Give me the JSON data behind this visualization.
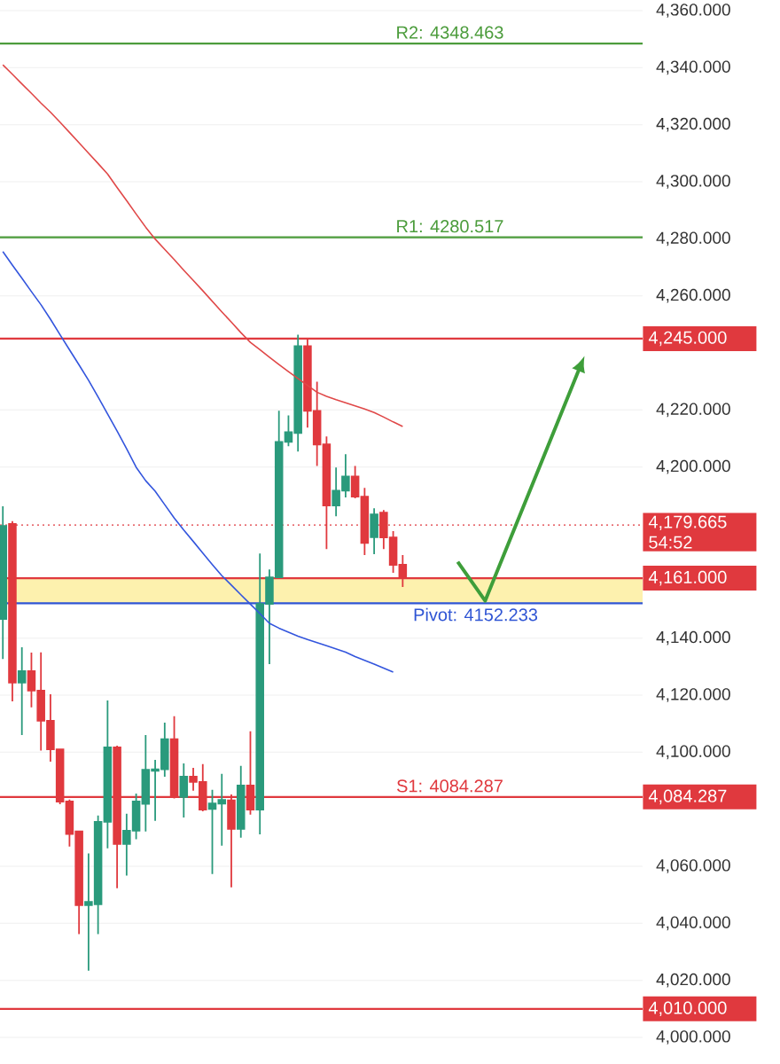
{
  "chart_data": {
    "type": "candlestick",
    "categories": [
      null,
      null,
      null,
      null,
      null,
      null,
      null,
      null,
      null,
      null,
      null,
      null,
      null,
      null,
      null,
      null,
      null,
      null,
      null,
      null,
      null,
      null,
      null,
      null,
      null,
      null,
      null,
      null,
      null,
      null,
      null,
      null,
      null,
      null,
      null,
      null,
      null,
      null,
      null,
      null,
      null,
      null,
      null
    ],
    "ohlc": [
      [
        4146.7,
        4186.2,
        4132.7,
        4179.3
      ],
      [
        4180,
        4181,
        4117.8,
        4124.4
      ],
      [
        4124.4,
        4136.8,
        4106,
        4128.4
      ],
      [
        4128.4,
        4134.9,
        4115.7,
        4121.6
      ],
      [
        4121.6,
        4135,
        4100.6,
        4111
      ],
      [
        4111,
        4120.3,
        4096.7,
        4101
      ],
      [
        4101,
        4101.2,
        4081.8,
        4082.7
      ],
      [
        4082.7,
        4083.4,
        4066.9,
        4071.3
      ],
      [
        4072.2,
        4072.5,
        4036.2,
        4046.4
      ],
      [
        4046.4,
        4064.5,
        4023.4,
        4047.5
      ],
      [
        4046.7,
        4077.8,
        4036.2,
        4075.6
      ],
      [
        4075.6,
        4118.1,
        4066.3,
        4101.7
      ],
      [
        4101.7,
        4102.3,
        4052.3,
        4067.8
      ],
      [
        4067.8,
        4078.4,
        4056.7,
        4072.5
      ],
      [
        4072.5,
        4085.5,
        4069.5,
        4082.7
      ],
      [
        4081.9,
        4106,
        4072.2,
        4093.8
      ],
      [
        4093.5,
        4097.3,
        4075.9,
        4094
      ],
      [
        4094,
        4110.4,
        4091.4,
        4104.6
      ],
      [
        4104.6,
        4112.6,
        4083.8,
        4084.3
      ],
      [
        4084.3,
        4096.1,
        4077.1,
        4091.4
      ],
      [
        4091.4,
        4094.5,
        4086.5,
        4089.6
      ],
      [
        4089.6,
        4095.8,
        4079.3,
        4079.9
      ],
      [
        4080.1,
        4086.8,
        4057.3,
        4082
      ],
      [
        4082,
        4092.4,
        4067.2,
        4083.3
      ],
      [
        4083.1,
        4085.2,
        4052.6,
        4073.1
      ],
      [
        4073.1,
        4095.2,
        4070,
        4088.3
      ],
      [
        4088.3,
        4107.3,
        4078.1,
        4079.9
      ],
      [
        4079.9,
        4169.7,
        4071.2,
        4152
      ],
      [
        4152,
        4164.1,
        4130.9,
        4161.3
      ],
      [
        4161.3,
        4219.7,
        4161.3,
        4208.8
      ],
      [
        4208.8,
        4218.1,
        4207.3,
        4212.2
      ],
      [
        4211.9,
        4246.4,
        4205.4,
        4242.4
      ],
      [
        4242.4,
        4244.9,
        4213.8,
        4219.7
      ],
      [
        4219.7,
        4229.9,
        4200.4,
        4207.9
      ],
      [
        4207.9,
        4210.7,
        4171.2,
        4186.5
      ],
      [
        4186.5,
        4199.8,
        4182.7,
        4191.7
      ],
      [
        4191.7,
        4204.5,
        4189.3,
        4196.7
      ],
      [
        4196.7,
        4200.4,
        4189,
        4189.6
      ],
      [
        4189.6,
        4192.7,
        4169.1,
        4173.4
      ],
      [
        4175.4,
        4185.5,
        4169.4,
        4183.4
      ],
      [
        4184,
        4184.9,
        4171.2,
        4175.3
      ],
      [
        4175.3,
        4177.5,
        4162.9,
        4165.7
      ],
      [
        4165.7,
        4169.1,
        4157.9,
        4161
      ]
    ],
    "colors": [
      "#2a9a7c",
      "#e0393e",
      "#2a9a7c",
      "#e0393e",
      "#e0393e",
      "#e0393e",
      "#e0393e",
      "#e0393e",
      "#e0393e",
      "#2a9a7c",
      "#2a9a7c",
      "#2a9a7c",
      "#e0393e",
      "#2a9a7c",
      "#2a9a7c",
      "#2a9a7c",
      "#2a9a7c",
      "#2a9a7c",
      "#e0393e",
      "#2a9a7c",
      "#e0393e",
      "#e0393e",
      "#2a9a7c",
      "#2a9a7c",
      "#e0393e",
      "#2a9a7c",
      "#e0393e",
      "#2a9a7c",
      "#2a9a7c",
      "#2a9a7c",
      "#2a9a7c",
      "#2a9a7c",
      "#e0393e",
      "#e0393e",
      "#e0393e",
      "#2a9a7c",
      "#2a9a7c",
      "#e0393e",
      "#e0393e",
      "#2a9a7c",
      "#e0393e",
      "#e0393e",
      "#e0393e"
    ],
    "series": [
      {
        "type": "line",
        "color": "#e04848",
        "values": [
          4341.0,
          4337.7,
          4334.3,
          4331.0,
          4327.6,
          4324.4,
          4320.9,
          4317.3,
          4313.7,
          4310.0,
          4306.4,
          4302.7,
          4298.0,
          4293.4,
          4288.7,
          4284.1,
          4279.9,
          4276.3,
          4272.7,
          4269.0,
          4265.4,
          4261.8,
          4258.1,
          4254.4,
          4250.8,
          4247.1,
          4243.7,
          4241.1,
          4238.5,
          4235.9,
          4233.4,
          4231.0,
          4228.6,
          4226.2,
          4224.8,
          4223.6,
          4222.5,
          4221.4,
          4220.3,
          4219.1,
          4217.5,
          4215.8,
          4214.2
        ]
      },
      {
        "type": "line",
        "color": "#3355dd",
        "values": [
          4275.5,
          4270.8,
          4266.2,
          4261.5,
          4256.9,
          4251.8,
          4246.4,
          4241.1,
          4235.8,
          4230.4,
          4224.6,
          4218.6,
          4212.6,
          4206.4,
          4199.9,
          4195.2,
          4191.5,
          4186.8,
          4182.1,
          4177.9,
          4173.9,
          4169.8,
          4165.8,
          4161.9,
          4158.6,
          4155.2,
          4151.9,
          4148.6,
          4145.2,
          4143.5,
          4142.1,
          4140.7,
          4139.5,
          4138.4,
          4137.3,
          4136.2,
          4135.1,
          4133.5,
          4132.2,
          4130.9,
          4129.5,
          4128.1,
          null
        ]
      }
    ],
    "ylim": [
      4000,
      4360
    ],
    "yticks": [
      {
        "value": 4000,
        "label": "4,000.000"
      },
      {
        "value": 4020,
        "label": "4,020.000"
      },
      {
        "value": 4040,
        "label": "4,040.000"
      },
      {
        "value": 4060,
        "label": "4,060.000"
      },
      {
        "value": 4100,
        "label": "4,100.000"
      },
      {
        "value": 4120,
        "label": "4,120.000"
      },
      {
        "value": 4140,
        "label": "4,140.000"
      },
      {
        "value": 4200,
        "label": "4,200.000"
      },
      {
        "value": 4220,
        "label": "4,220.000"
      },
      {
        "value": 4260,
        "label": "4,260.000"
      },
      {
        "value": 4280,
        "label": "4,280.000"
      },
      {
        "value": 4300,
        "label": "4,300.000"
      },
      {
        "value": 4320,
        "label": "4,320.000"
      },
      {
        "value": 4340,
        "label": "4,340.000"
      },
      {
        "value": 4360,
        "label": "4,360.000"
      }
    ],
    "tick_labels": "y",
    "grid": "y",
    "bands": [
      {
        "axis": "y",
        "from": 4152.233,
        "to": 4161,
        "color": "#fdf1ae"
      }
    ],
    "ref_lines": [
      {
        "axis": "y",
        "value": 4348.463,
        "label": "R2: 4348.463",
        "color": "#4c9c3c"
      },
      {
        "axis": "y",
        "value": 4280.517,
        "label": "R1: 4280.517",
        "color": "#4c9c3c"
      },
      {
        "axis": "y",
        "value": 4245,
        "label": "4,245.000",
        "color": "#e0393e"
      },
      {
        "axis": "y",
        "value": 4179.665,
        "label": "4,179.665 54:52",
        "color": "#e0393e",
        "line_style": "dotted"
      },
      {
        "axis": "y",
        "value": 4161,
        "label": "4,161.000",
        "color": "#e0393e"
      },
      {
        "axis": "y",
        "value": 4152.233,
        "label": "Pivot: 4152.233",
        "color": "#2f55d4"
      },
      {
        "axis": "y",
        "value": 4084.287,
        "label": "S1: 4084.287",
        "color": "#e0393e"
      },
      {
        "axis": "y",
        "value": 4010,
        "label": "4,010.000",
        "color": "#e0393e"
      }
    ],
    "annotations": [
      "4,084.287"
    ]
  }
}
